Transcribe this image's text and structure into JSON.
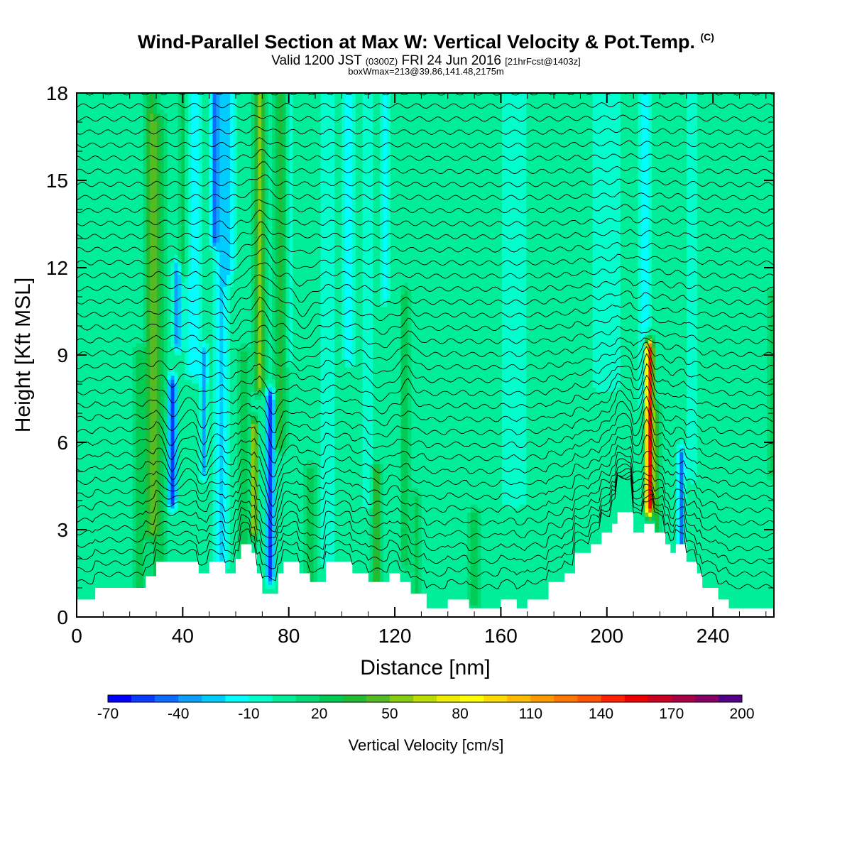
{
  "header": {
    "title": "Wind-Parallel Section at Max W: Vertical Velocity & Pot.Temp.",
    "copyright": "(C)",
    "valid_prefix": "Valid 1200 JST",
    "valid_utc": "(0300Z)",
    "valid_date": "FRI 24 Jun 2016",
    "forecast": "[21hrFcst@1403z]",
    "boxline": "boxWmax=213@39.86,141.48,2175m"
  },
  "chart_data": {
    "type": "heatmap",
    "xlabel": "Distance [nm]",
    "ylabel": "Height [Kft MSL]",
    "xlim": [
      0,
      263
    ],
    "ylim": [
      0,
      18
    ],
    "xticks": [
      0,
      40,
      80,
      120,
      160,
      200,
      240
    ],
    "yticks": [
      0,
      3,
      6,
      9,
      12,
      15,
      18
    ],
    "grid": false,
    "colorbar": {
      "label": "Vertical Velocity [cm/s]",
      "tick_labels": [
        "-70",
        "-40",
        "-10",
        "20",
        "50",
        "80",
        "110",
        "140",
        "170",
        "200"
      ],
      "levels": [
        -70,
        -60,
        -50,
        -40,
        -30,
        -20,
        -10,
        0,
        10,
        20,
        30,
        40,
        50,
        60,
        70,
        80,
        90,
        100,
        110,
        120,
        130,
        140,
        150,
        160,
        170,
        180,
        190,
        200
      ],
      "colors": [
        "#0000ff",
        "#0a3cff",
        "#0c6cff",
        "#0da0ff",
        "#00ccff",
        "#00ffff",
        "#00ffcc",
        "#00ee99",
        "#00dd77",
        "#00cc55",
        "#22bb33",
        "#55bb22",
        "#88cc11",
        "#bbdd00",
        "#eeee00",
        "#ffff00",
        "#ffdd00",
        "#ffbb00",
        "#ff9900",
        "#ff7700",
        "#ff5500",
        "#ff2200",
        "#ee0000",
        "#cc0022",
        "#aa0044",
        "#880066",
        "#550088"
      ]
    },
    "background_value": 5,
    "terrain": [
      [
        0,
        0.6
      ],
      [
        7,
        0.6
      ],
      [
        7,
        1.0
      ],
      [
        26,
        1.0
      ],
      [
        26,
        1.4
      ],
      [
        30,
        1.4
      ],
      [
        30,
        1.9
      ],
      [
        46,
        1.9
      ],
      [
        46,
        1.5
      ],
      [
        50,
        1.5
      ],
      [
        50,
        1.9
      ],
      [
        56,
        1.9
      ],
      [
        56,
        1.5
      ],
      [
        60,
        1.5
      ],
      [
        60,
        2.0
      ],
      [
        62,
        2.0
      ],
      [
        62,
        2.5
      ],
      [
        66,
        2.5
      ],
      [
        66,
        2.2
      ],
      [
        68,
        2.2
      ],
      [
        68,
        1.5
      ],
      [
        70,
        1.5
      ],
      [
        70,
        0.8
      ],
      [
        76,
        0.8
      ],
      [
        76,
        1.5
      ],
      [
        78,
        1.5
      ],
      [
        78,
        1.9
      ],
      [
        84,
        1.9
      ],
      [
        84,
        1.5
      ],
      [
        88,
        1.5
      ],
      [
        88,
        1.2
      ],
      [
        94,
        1.2
      ],
      [
        94,
        1.9
      ],
      [
        104,
        1.9
      ],
      [
        104,
        1.5
      ],
      [
        110,
        1.5
      ],
      [
        110,
        1.2
      ],
      [
        118,
        1.2
      ],
      [
        118,
        1.5
      ],
      [
        122,
        1.5
      ],
      [
        122,
        1.2
      ],
      [
        126,
        1.2
      ],
      [
        126,
        0.8
      ],
      [
        132,
        0.8
      ],
      [
        132,
        0.3
      ],
      [
        140,
        0.3
      ],
      [
        140,
        0.6
      ],
      [
        148,
        0.6
      ],
      [
        148,
        0.3
      ],
      [
        160,
        0.3
      ],
      [
        160,
        0.6
      ],
      [
        166,
        0.6
      ],
      [
        166,
        0.3
      ],
      [
        170,
        0.3
      ],
      [
        170,
        0.6
      ],
      [
        178,
        0.6
      ],
      [
        178,
        1.2
      ],
      [
        184,
        1.2
      ],
      [
        184,
        1.5
      ],
      [
        188,
        1.5
      ],
      [
        188,
        2.2
      ],
      [
        194,
        2.2
      ],
      [
        194,
        2.5
      ],
      [
        198,
        2.5
      ],
      [
        198,
        2.9
      ],
      [
        202,
        2.9
      ],
      [
        202,
        3.2
      ],
      [
        204,
        3.2
      ],
      [
        204,
        3.6
      ],
      [
        210,
        3.6
      ],
      [
        210,
        2.9
      ],
      [
        214,
        2.9
      ],
      [
        214,
        3.2
      ],
      [
        218,
        3.2
      ],
      [
        218,
        2.9
      ],
      [
        222,
        2.9
      ],
      [
        222,
        2.5
      ],
      [
        224,
        2.5
      ],
      [
        224,
        2.2
      ],
      [
        226,
        2.2
      ],
      [
        226,
        2.5
      ],
      [
        230,
        2.5
      ],
      [
        230,
        1.9
      ],
      [
        234,
        1.9
      ],
      [
        234,
        1.5
      ],
      [
        236,
        1.5
      ],
      [
        236,
        1.0
      ],
      [
        242,
        1.0
      ],
      [
        242,
        0.6
      ],
      [
        246,
        0.6
      ],
      [
        246,
        0.3
      ],
      [
        263,
        0.3
      ]
    ],
    "w_features": [
      {
        "x": 24,
        "z0": 0.5,
        "z1": 9.0,
        "sx": 2.5,
        "w": 18
      },
      {
        "x": 28,
        "z0": 3.0,
        "z1": 18.0,
        "sx": 2.2,
        "w": 30
      },
      {
        "x": 31,
        "z0": 1.0,
        "z1": 17.0,
        "sx": 3.0,
        "w": 22
      },
      {
        "x": 36,
        "z0": 4.0,
        "z1": 8.0,
        "sx": 1.6,
        "w": -60
      },
      {
        "x": 38,
        "z0": 9.5,
        "z1": 12.0,
        "sx": 1.4,
        "w": -45
      },
      {
        "x": 40,
        "z0": 12.0,
        "z1": 18.0,
        "sx": 2.0,
        "w": 22
      },
      {
        "x": 44,
        "z0": 8.5,
        "z1": 18.0,
        "sx": 3.0,
        "w": -20
      },
      {
        "x": 48,
        "z0": 5.0,
        "z1": 9.0,
        "sx": 1.4,
        "w": -35
      },
      {
        "x": 52,
        "z0": 13.0,
        "z1": 18.0,
        "sx": 1.6,
        "w": -40
      },
      {
        "x": 55,
        "z0": 2.0,
        "z1": 18.0,
        "sx": 2.6,
        "w": -28
      },
      {
        "x": 58,
        "z0": 12.0,
        "z1": 18.0,
        "sx": 1.6,
        "w": -18
      },
      {
        "x": 63,
        "z0": 0.5,
        "z1": 9.0,
        "sx": 2.0,
        "w": 22
      },
      {
        "x": 67,
        "z0": 3.0,
        "z1": 6.5,
        "sx": 1.2,
        "w": 62
      },
      {
        "x": 69,
        "z0": 8.0,
        "z1": 18.0,
        "sx": 1.8,
        "w": 55
      },
      {
        "x": 73,
        "z0": 1.5,
        "z1": 7.5,
        "sx": 1.5,
        "w": -65
      },
      {
        "x": 77,
        "z0": 6.0,
        "z1": 18.0,
        "sx": 2.0,
        "w": 35
      },
      {
        "x": 80,
        "z0": 9.0,
        "z1": 18.0,
        "sx": 2.0,
        "w": -12
      },
      {
        "x": 88,
        "z0": 1.0,
        "z1": 5.0,
        "sx": 2.5,
        "w": 18
      },
      {
        "x": 95,
        "z0": 2.0,
        "z1": 18.0,
        "sx": 3.0,
        "w": -12
      },
      {
        "x": 103,
        "z0": 9.0,
        "z1": 18.0,
        "sx": 2.0,
        "w": -25
      },
      {
        "x": 110,
        "z0": 4.0,
        "z1": 18.0,
        "sx": 2.0,
        "w": -15
      },
      {
        "x": 113,
        "z0": 1.0,
        "z1": 5.0,
        "sx": 1.8,
        "w": 38
      },
      {
        "x": 116,
        "z0": 11.0,
        "z1": 18.0,
        "sx": 1.5,
        "w": -18
      },
      {
        "x": 124,
        "z0": 2.0,
        "z1": 11.0,
        "sx": 1.6,
        "w": 25
      },
      {
        "x": 128,
        "z0": 1.0,
        "z1": 4.0,
        "sx": 1.8,
        "w": 20
      },
      {
        "x": 150,
        "z0": 0.5,
        "z1": 3.5,
        "sx": 1.8,
        "w": 20
      },
      {
        "x": 165,
        "z0": 4.0,
        "z1": 18.0,
        "sx": 6.0,
        "w": -8
      },
      {
        "x": 200,
        "z0": 8.0,
        "z1": 18.0,
        "sx": 6.0,
        "w": -10
      },
      {
        "x": 214,
        "z0": 7.5,
        "z1": 18.0,
        "sx": 2.2,
        "w": -20
      },
      {
        "x": 216,
        "z0": 3.8,
        "z1": 9.2,
        "sx": 1.4,
        "w": 155
      },
      {
        "x": 219,
        "z0": 3.0,
        "z1": 7.0,
        "sx": 1.4,
        "w": 25
      },
      {
        "x": 228,
        "z0": 2.5,
        "z1": 5.5,
        "sx": 1.2,
        "w": -55
      },
      {
        "x": 232,
        "z0": 5.0,
        "z1": 18.0,
        "sx": 2.0,
        "w": -15
      },
      {
        "x": 262,
        "z0": 5.0,
        "z1": 11.0,
        "sx": 1.5,
        "w": 20
      }
    ],
    "theta_isentropes": {
      "start_kft": 0.9,
      "spacing_kft": 0.45,
      "count": 40
    },
    "isentrope_waves": [
      {
        "x": 36,
        "z0": 3.0,
        "z1": 9.0,
        "sx": 3.0,
        "dz": -0.8
      },
      {
        "x": 48,
        "z0": 3.5,
        "z1": 8.0,
        "sx": 2.5,
        "dz": -0.6
      },
      {
        "x": 58,
        "z0": 9.0,
        "z1": 14.0,
        "sx": 3.0,
        "dz": -0.4
      },
      {
        "x": 70,
        "z0": 3.0,
        "z1": 18.0,
        "sx": 3.5,
        "dz": 0.5
      },
      {
        "x": 74,
        "z0": 2.0,
        "z1": 8.0,
        "sx": 3.0,
        "dz": -0.9
      },
      {
        "x": 85,
        "z0": 8.0,
        "z1": 13.0,
        "sx": 4.0,
        "dz": -0.5
      },
      {
        "x": 115,
        "z0": 3.0,
        "z1": 12.0,
        "sx": 5.0,
        "dz": -0.3
      },
      {
        "x": 125,
        "z0": 6.0,
        "z1": 11.0,
        "sx": 2.5,
        "dz": 0.4
      },
      {
        "x": 205,
        "z0": 4.0,
        "z1": 9.0,
        "sx": 4.0,
        "dz": 0.4
      },
      {
        "x": 215,
        "z0": 3.5,
        "z1": 9.5,
        "sx": 2.0,
        "dz": 0.9
      }
    ]
  }
}
